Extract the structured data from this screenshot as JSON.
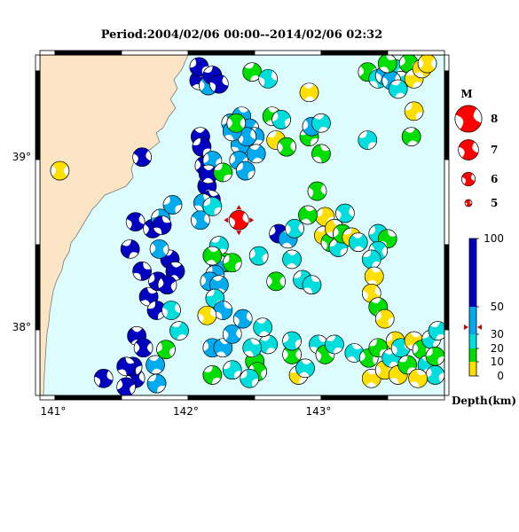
{
  "title": "Period:2004/02/06 00:00--2014/02/06 02:32",
  "map": {
    "lon_range": [
      140.9,
      143.95
    ],
    "lat_range": [
      37.6,
      39.6
    ],
    "x_ticks": [
      {
        "value": 141,
        "label": "141°"
      },
      {
        "value": 142,
        "label": "142°"
      },
      {
        "value": 143,
        "label": "143°"
      }
    ],
    "y_ticks": [
      {
        "value": 39,
        "label": "39°"
      },
      {
        "value": 38,
        "label": "38°"
      }
    ],
    "land_color": "#fbe5c4",
    "sea_color": "#dcfcfe",
    "coast_color": "#7a7a7a",
    "main_event": {
      "lon": 142.4,
      "lat": 38.63,
      "magnitude": 7,
      "color": "#ff0000"
    }
  },
  "legend": {
    "title": "M",
    "magnitudes": [
      {
        "label": "8",
        "value": 8
      },
      {
        "label": "7",
        "value": 7
      },
      {
        "label": "6",
        "value": 6
      },
      {
        "label": "5",
        "value": 5
      }
    ],
    "depth_title": "Depth(km)",
    "depth_ticks": [
      {
        "label": "100",
        "value": 100
      },
      {
        "label": "50",
        "value": 50
      },
      {
        "label": "30",
        "value": 30
      },
      {
        "label": "20",
        "value": 20
      },
      {
        "label": "10",
        "value": 10
      },
      {
        "label": "0",
        "value": 0
      }
    ],
    "depth_bands": [
      {
        "from": 0,
        "to": 10,
        "color": "#fedf00"
      },
      {
        "from": 10,
        "to": 20,
        "color": "#00dd00"
      },
      {
        "from": 20,
        "to": 30,
        "color": "#00dddd"
      },
      {
        "from": 30,
        "to": 50,
        "color": "#00aaee"
      },
      {
        "from": 50,
        "to": 100,
        "color": "#0000c0"
      }
    ]
  },
  "events": [
    {
      "lon": 141.05,
      "lat": 38.92,
      "d": 5,
      "r": 0.6
    },
    {
      "lon": 141.62,
      "lat": 37.7,
      "d": 80,
      "r": 0.4
    },
    {
      "lon": 141.6,
      "lat": 37.77,
      "d": 80,
      "r": 1.1
    },
    {
      "lon": 141.38,
      "lat": 37.7,
      "d": 80,
      "r": 0.2
    },
    {
      "lon": 141.55,
      "lat": 37.65,
      "d": 80,
      "r": 0.9
    },
    {
      "lon": 141.63,
      "lat": 37.95,
      "d": 80,
      "r": 2.2
    },
    {
      "lon": 141.58,
      "lat": 38.46,
      "d": 80,
      "r": 1.7
    },
    {
      "lon": 141.62,
      "lat": 38.62,
      "d": 80,
      "r": 0.3
    },
    {
      "lon": 141.72,
      "lat": 38.18,
      "d": 80,
      "r": 2.6
    },
    {
      "lon": 141.79,
      "lat": 38.27,
      "d": 80,
      "r": 1.0
    },
    {
      "lon": 141.75,
      "lat": 38.58,
      "d": 80,
      "r": 0.5
    },
    {
      "lon": 141.88,
      "lat": 38.4,
      "d": 80,
      "r": 1.9
    },
    {
      "lon": 141.92,
      "lat": 38.33,
      "d": 80,
      "r": 2.3
    },
    {
      "lon": 141.86,
      "lat": 38.25,
      "d": 80,
      "r": 0.8
    },
    {
      "lon": 141.78,
      "lat": 38.1,
      "d": 80,
      "r": 1.4
    },
    {
      "lon": 141.67,
      "lat": 38.33,
      "d": 80,
      "r": 2.9
    },
    {
      "lon": 141.68,
      "lat": 37.88,
      "d": 80,
      "r": 0.6
    },
    {
      "lon": 141.81,
      "lat": 38.64,
      "d": 40,
      "r": 1.3
    },
    {
      "lon": 141.82,
      "lat": 38.6,
      "d": 80,
      "r": 2.8
    },
    {
      "lon": 141.8,
      "lat": 38.46,
      "d": 40,
      "r": 0.7
    },
    {
      "lon": 141.9,
      "lat": 38.72,
      "d": 40,
      "r": 1.2
    },
    {
      "lon": 141.89,
      "lat": 38.1,
      "d": 25,
      "r": 0.3
    },
    {
      "lon": 141.77,
      "lat": 37.78,
      "d": 40,
      "r": 2.0
    },
    {
      "lon": 141.78,
      "lat": 37.67,
      "d": 40,
      "r": 1.5
    },
    {
      "lon": 141.85,
      "lat": 37.87,
      "d": 15,
      "r": 0.9
    },
    {
      "lon": 141.95,
      "lat": 37.98,
      "d": 25,
      "r": 1.8
    },
    {
      "lon": 141.55,
      "lat": 37.77,
      "d": 80,
      "r": 2.7
    },
    {
      "lon": 141.67,
      "lat": 39.0,
      "d": 80,
      "r": 0.4
    },
    {
      "lon": 142.1,
      "lat": 39.45,
      "d": 80,
      "r": 2.4
    },
    {
      "lon": 142.1,
      "lat": 39.53,
      "d": 80,
      "r": 1.1
    },
    {
      "lon": 142.17,
      "lat": 39.42,
      "d": 40,
      "r": 0.6
    },
    {
      "lon": 142.2,
      "lat": 39.48,
      "d": 80,
      "r": 1.6
    },
    {
      "lon": 142.25,
      "lat": 39.43,
      "d": 80,
      "r": 0.2
    },
    {
      "lon": 142.11,
      "lat": 39.12,
      "d": 80,
      "r": 2.1
    },
    {
      "lon": 142.12,
      "lat": 39.06,
      "d": 80,
      "r": 1.4
    },
    {
      "lon": 142.14,
      "lat": 38.95,
      "d": 80,
      "r": 0.7
    },
    {
      "lon": 142.16,
      "lat": 38.83,
      "d": 80,
      "r": 1.9
    },
    {
      "lon": 142.19,
      "lat": 38.75,
      "d": 80,
      "r": 2.5
    },
    {
      "lon": 142.2,
      "lat": 38.98,
      "d": 40,
      "r": 0.9
    },
    {
      "lon": 142.13,
      "lat": 38.73,
      "d": 40,
      "r": 2.8
    },
    {
      "lon": 142.11,
      "lat": 38.63,
      "d": 40,
      "r": 0.4
    },
    {
      "lon": 142.2,
      "lat": 38.71,
      "d": 25,
      "r": 1.3
    },
    {
      "lon": 142.17,
      "lat": 38.9,
      "d": 80,
      "r": 2.2
    },
    {
      "lon": 142.34,
      "lat": 39.2,
      "d": 40,
      "r": 1.0
    },
    {
      "lon": 142.42,
      "lat": 39.24,
      "d": 40,
      "r": 2.4
    },
    {
      "lon": 142.48,
      "lat": 39.17,
      "d": 40,
      "r": 0.5
    },
    {
      "lon": 142.52,
      "lat": 39.12,
      "d": 40,
      "r": 1.7
    },
    {
      "lon": 142.41,
      "lat": 39.07,
      "d": 40,
      "r": 2.9
    },
    {
      "lon": 142.4,
      "lat": 38.98,
      "d": 40,
      "r": 0.8
    },
    {
      "lon": 142.45,
      "lat": 38.92,
      "d": 40,
      "r": 1.2
    },
    {
      "lon": 142.53,
      "lat": 39.02,
      "d": 40,
      "r": 2.0
    },
    {
      "lon": 142.46,
      "lat": 39.12,
      "d": 40,
      "r": 0.3
    },
    {
      "lon": 142.28,
      "lat": 38.91,
      "d": 15,
      "r": 1.5
    },
    {
      "lon": 142.35,
      "lat": 39.15,
      "d": 40,
      "r": 2.6
    },
    {
      "lon": 142.38,
      "lat": 39.2,
      "d": 15,
      "r": 0.6
    },
    {
      "lon": 142.5,
      "lat": 39.5,
      "d": 15,
      "r": 1.8
    },
    {
      "lon": 142.62,
      "lat": 39.46,
      "d": 25,
      "r": 0.2
    },
    {
      "lon": 142.65,
      "lat": 39.24,
      "d": 15,
      "r": 2.3
    },
    {
      "lon": 142.72,
      "lat": 39.22,
      "d": 25,
      "r": 1.0
    },
    {
      "lon": 142.68,
      "lat": 39.1,
      "d": 5,
      "r": 1.6
    },
    {
      "lon": 142.76,
      "lat": 39.06,
      "d": 15,
      "r": 0.5
    },
    {
      "lon": 142.93,
      "lat": 39.38,
      "d": 5,
      "r": 2.1
    },
    {
      "lon": 142.93,
      "lat": 39.12,
      "d": 15,
      "r": 1.4
    },
    {
      "lon": 142.95,
      "lat": 39.18,
      "d": 40,
      "r": 0.8
    },
    {
      "lon": 143.02,
      "lat": 39.02,
      "d": 15,
      "r": 2.7
    },
    {
      "lon": 143.02,
      "lat": 39.2,
      "d": 25,
      "r": 1.9
    },
    {
      "lon": 142.99,
      "lat": 38.8,
      "d": 15,
      "r": 0.4
    },
    {
      "lon": 143.05,
      "lat": 38.65,
      "d": 5,
      "r": 1.2
    },
    {
      "lon": 142.92,
      "lat": 38.66,
      "d": 15,
      "r": 2.4
    },
    {
      "lon": 143.37,
      "lat": 39.5,
      "d": 15,
      "r": 0.7
    },
    {
      "lon": 143.37,
      "lat": 39.1,
      "d": 25,
      "r": 1.5
    },
    {
      "lon": 143.45,
      "lat": 39.46,
      "d": 25,
      "r": 2.8
    },
    {
      "lon": 143.5,
      "lat": 39.48,
      "d": 40,
      "r": 0.3
    },
    {
      "lon": 143.57,
      "lat": 39.52,
      "d": 25,
      "r": 1.1
    },
    {
      "lon": 143.62,
      "lat": 39.45,
      "d": 25,
      "r": 2.2
    },
    {
      "lon": 143.68,
      "lat": 39.55,
      "d": 15,
      "r": 0.9
    },
    {
      "lon": 143.72,
      "lat": 39.46,
      "d": 5,
      "r": 1.7
    },
    {
      "lon": 143.78,
      "lat": 39.52,
      "d": 5,
      "r": 2.5
    },
    {
      "lon": 143.82,
      "lat": 39.55,
      "d": 5,
      "r": 0.6
    },
    {
      "lon": 143.72,
      "lat": 39.27,
      "d": 5,
      "r": 1.3
    },
    {
      "lon": 143.7,
      "lat": 39.12,
      "d": 15,
      "r": 2.0
    },
    {
      "lon": 143.55,
      "lat": 39.45,
      "d": 40,
      "r": 0.4
    },
    {
      "lon": 143.6,
      "lat": 39.4,
      "d": 25,
      "r": 1.9
    },
    {
      "lon": 143.52,
      "lat": 39.55,
      "d": 15,
      "r": 2.6
    },
    {
      "lon": 142.7,
      "lat": 38.55,
      "d": 80,
      "r": 1.0
    },
    {
      "lon": 142.77,
      "lat": 38.52,
      "d": 40,
      "r": 2.3
    },
    {
      "lon": 142.82,
      "lat": 38.58,
      "d": 25,
      "r": 0.5
    },
    {
      "lon": 143.04,
      "lat": 38.54,
      "d": 5,
      "r": 1.8
    },
    {
      "lon": 143.09,
      "lat": 38.5,
      "d": 15,
      "r": 0.2
    },
    {
      "lon": 143.12,
      "lat": 38.58,
      "d": 5,
      "r": 2.6
    },
    {
      "lon": 143.15,
      "lat": 38.47,
      "d": 25,
      "r": 1.3
    },
    {
      "lon": 143.18,
      "lat": 38.55,
      "d": 15,
      "r": 0.8
    },
    {
      "lon": 143.25,
      "lat": 38.53,
      "d": 5,
      "r": 1.6
    },
    {
      "lon": 143.3,
      "lat": 38.5,
      "d": 25,
      "r": 2.1
    },
    {
      "lon": 143.2,
      "lat": 38.67,
      "d": 25,
      "r": 0.4
    },
    {
      "lon": 143.45,
      "lat": 38.55,
      "d": 25,
      "r": 1.1
    },
    {
      "lon": 143.52,
      "lat": 38.52,
      "d": 15,
      "r": 2.8
    },
    {
      "lon": 143.45,
      "lat": 38.45,
      "d": 25,
      "r": 0.7
    },
    {
      "lon": 143.4,
      "lat": 38.4,
      "d": 25,
      "r": 1.5
    },
    {
      "lon": 143.42,
      "lat": 38.3,
      "d": 5,
      "r": 2.4
    },
    {
      "lon": 143.4,
      "lat": 38.2,
      "d": 5,
      "r": 0.3
    },
    {
      "lon": 143.45,
      "lat": 38.12,
      "d": 15,
      "r": 1.9
    },
    {
      "lon": 143.5,
      "lat": 38.05,
      "d": 5,
      "r": 1.0
    },
    {
      "lon": 142.8,
      "lat": 38.4,
      "d": 25,
      "r": 2.2
    },
    {
      "lon": 142.68,
      "lat": 38.27,
      "d": 15,
      "r": 0.6
    },
    {
      "lon": 142.88,
      "lat": 38.28,
      "d": 25,
      "r": 1.4
    },
    {
      "lon": 142.95,
      "lat": 38.25,
      "d": 25,
      "r": 2.7
    },
    {
      "lon": 142.55,
      "lat": 38.42,
      "d": 25,
      "r": 0.9
    },
    {
      "lon": 142.25,
      "lat": 38.48,
      "d": 25,
      "r": 1.7
    },
    {
      "lon": 142.3,
      "lat": 38.38,
      "d": 15,
      "r": 0.4
    },
    {
      "lon": 142.25,
      "lat": 38.37,
      "d": 40,
      "r": 2.5
    },
    {
      "lon": 142.22,
      "lat": 38.31,
      "d": 40,
      "r": 1.2
    },
    {
      "lon": 142.18,
      "lat": 38.27,
      "d": 40,
      "r": 0.7
    },
    {
      "lon": 142.25,
      "lat": 38.25,
      "d": 40,
      "r": 2.0
    },
    {
      "lon": 142.22,
      "lat": 38.17,
      "d": 25,
      "r": 1.5
    },
    {
      "lon": 142.28,
      "lat": 38.1,
      "d": 40,
      "r": 2.9
    },
    {
      "lon": 142.16,
      "lat": 38.07,
      "d": 5,
      "r": 0.2
    },
    {
      "lon": 142.35,
      "lat": 38.38,
      "d": 15,
      "r": 1.1
    },
    {
      "lon": 142.2,
      "lat": 38.42,
      "d": 15,
      "r": 2.3
    },
    {
      "lon": 142.2,
      "lat": 37.88,
      "d": 40,
      "r": 0.8
    },
    {
      "lon": 142.2,
      "lat": 37.72,
      "d": 15,
      "r": 1.6
    },
    {
      "lon": 142.28,
      "lat": 37.88,
      "d": 40,
      "r": 2.4
    },
    {
      "lon": 142.35,
      "lat": 37.96,
      "d": 40,
      "r": 0.5
    },
    {
      "lon": 142.35,
      "lat": 37.75,
      "d": 25,
      "r": 1.3
    },
    {
      "lon": 142.52,
      "lat": 37.8,
      "d": 15,
      "r": 2.1
    },
    {
      "lon": 142.54,
      "lat": 37.74,
      "d": 15,
      "r": 0.9
    },
    {
      "lon": 142.62,
      "lat": 37.9,
      "d": 25,
      "r": 1.8
    },
    {
      "lon": 142.5,
      "lat": 37.88,
      "d": 25,
      "r": 2.6
    },
    {
      "lon": 142.43,
      "lat": 38.05,
      "d": 40,
      "r": 0.3
    },
    {
      "lon": 142.48,
      "lat": 37.7,
      "d": 25,
      "r": 1.2
    },
    {
      "lon": 142.58,
      "lat": 38.0,
      "d": 25,
      "r": 2.0
    },
    {
      "lon": 142.8,
      "lat": 37.84,
      "d": 15,
      "r": 0.6
    },
    {
      "lon": 142.85,
      "lat": 37.72,
      "d": 5,
      "r": 1.5
    },
    {
      "lon": 142.9,
      "lat": 37.76,
      "d": 25,
      "r": 2.3
    },
    {
      "lon": 142.8,
      "lat": 37.92,
      "d": 25,
      "r": 1.0
    },
    {
      "lon": 143.0,
      "lat": 37.9,
      "d": 25,
      "r": 2.8
    },
    {
      "lon": 143.05,
      "lat": 37.84,
      "d": 15,
      "r": 0.4
    },
    {
      "lon": 143.12,
      "lat": 37.9,
      "d": 25,
      "r": 1.7
    },
    {
      "lon": 143.27,
      "lat": 37.85,
      "d": 25,
      "r": 2.5
    },
    {
      "lon": 143.38,
      "lat": 37.82,
      "d": 15,
      "r": 0.8
    },
    {
      "lon": 143.45,
      "lat": 37.88,
      "d": 15,
      "r": 1.4
    },
    {
      "lon": 143.4,
      "lat": 37.7,
      "d": 5,
      "r": 2.2
    },
    {
      "lon": 143.5,
      "lat": 37.75,
      "d": 5,
      "r": 0.5
    },
    {
      "lon": 143.55,
      "lat": 37.82,
      "d": 25,
      "r": 1.9
    },
    {
      "lon": 143.6,
      "lat": 37.72,
      "d": 5,
      "r": 2.7
    },
    {
      "lon": 143.58,
      "lat": 37.92,
      "d": 5,
      "r": 1.1
    },
    {
      "lon": 143.62,
      "lat": 37.88,
      "d": 25,
      "r": 0.3
    },
    {
      "lon": 143.67,
      "lat": 37.78,
      "d": 15,
      "r": 1.6
    },
    {
      "lon": 143.72,
      "lat": 37.92,
      "d": 5,
      "r": 2.4
    },
    {
      "lon": 143.78,
      "lat": 37.87,
      "d": 15,
      "r": 0.7
    },
    {
      "lon": 143.85,
      "lat": 37.93,
      "d": 25,
      "r": 1.3
    },
    {
      "lon": 143.82,
      "lat": 37.78,
      "d": 25,
      "r": 2.1
    },
    {
      "lon": 143.88,
      "lat": 37.72,
      "d": 25,
      "r": 0.9
    },
    {
      "lon": 143.9,
      "lat": 37.98,
      "d": 25,
      "r": 1.8
    },
    {
      "lon": 143.75,
      "lat": 37.7,
      "d": 5,
      "r": 2.6
    },
    {
      "lon": 143.88,
      "lat": 37.83,
      "d": 15,
      "r": 1.2
    }
  ]
}
